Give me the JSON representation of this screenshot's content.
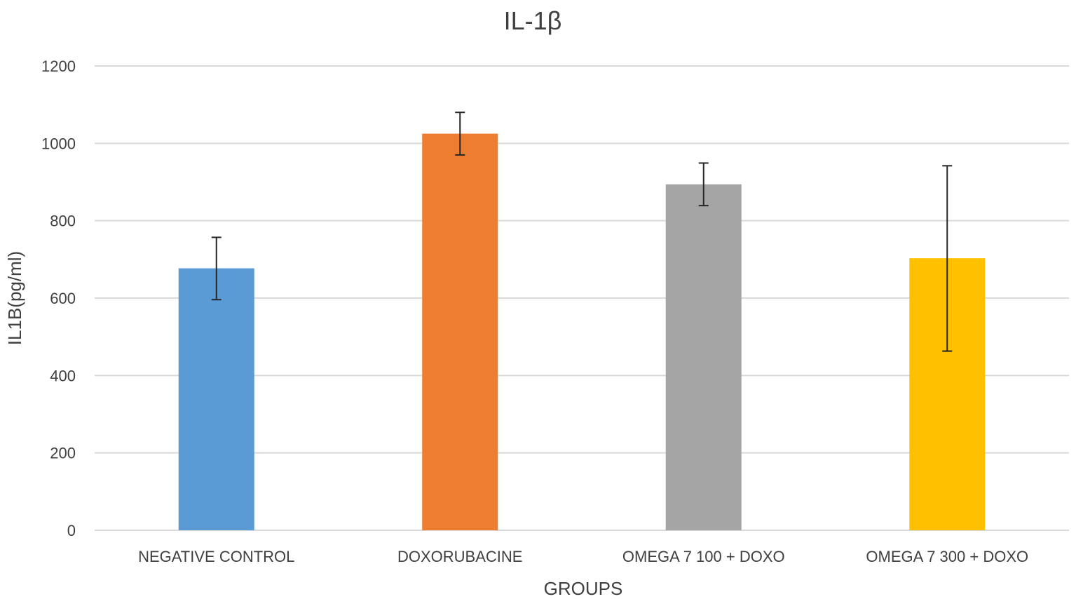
{
  "chart_data": {
    "type": "bar",
    "title": "IL-1β",
    "xlabel": "GROUPS",
    "ylabel": "IL1B(pg/ml)",
    "ylim": [
      0,
      1200
    ],
    "yticks": [
      0,
      200,
      400,
      600,
      800,
      1000,
      1200
    ],
    "grid": true,
    "legend": "none",
    "categories": [
      "NEGATIVE CONTROL",
      "DOXORUBACINE",
      "OMEGA 7 100 + DOXO",
      "OMEGA 7 300 + DOXO"
    ],
    "values": [
      677,
      1025,
      894,
      703
    ],
    "error_bars": [
      {
        "low": 596,
        "high": 757
      },
      {
        "low": 970,
        "high": 1080
      },
      {
        "low": 839,
        "high": 949
      },
      {
        "low": 463,
        "high": 942
      }
    ],
    "colors": [
      "#5b9bd5",
      "#ed7d31",
      "#a5a5a5",
      "#ffc000"
    ]
  }
}
